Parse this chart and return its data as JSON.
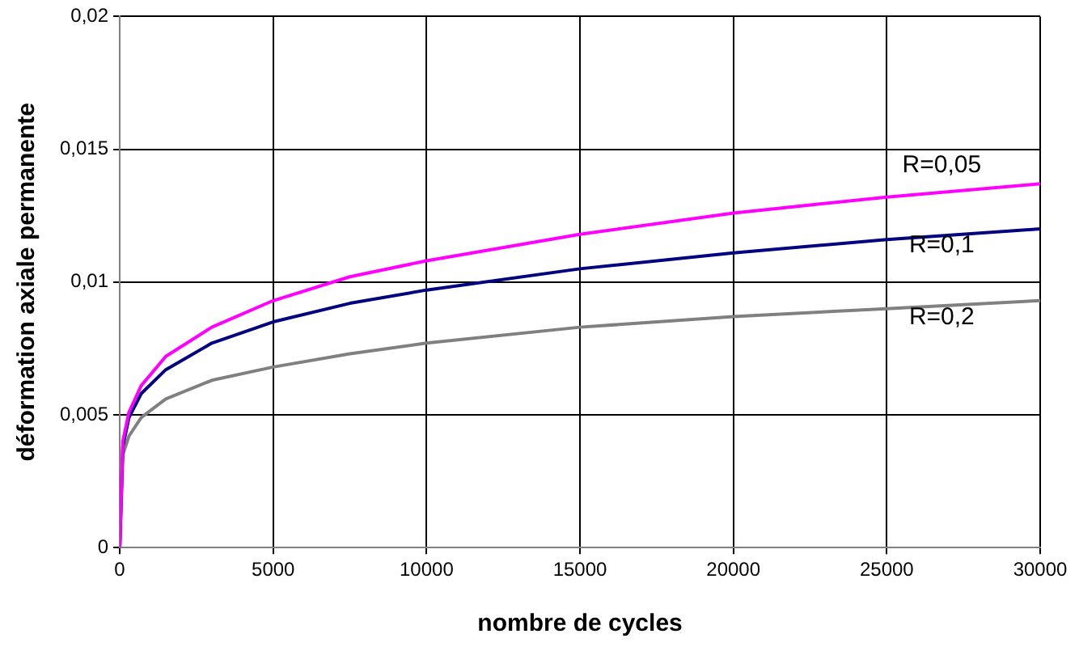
{
  "chart_data": {
    "type": "line",
    "xlabel": "nombre de cycles",
    "ylabel": "déformation axiale permanente",
    "x": [
      0,
      100,
      300,
      700,
      1500,
      3000,
      5000,
      7500,
      10000,
      15000,
      20000,
      25000,
      30000
    ],
    "series": [
      {
        "name": "R=0,05",
        "color": "#ff00ff",
        "values": [
          0,
          0.004,
          0.0051,
          0.0061,
          0.0072,
          0.0083,
          0.0093,
          0.0102,
          0.0108,
          0.0118,
          0.0126,
          0.0132,
          0.0137
        ]
      },
      {
        "name": "R=0,1",
        "color": "#000080",
        "values": [
          0,
          0.0038,
          0.0049,
          0.0058,
          0.0067,
          0.0077,
          0.0085,
          0.0092,
          0.0097,
          0.0105,
          0.0111,
          0.0116,
          0.012
        ]
      },
      {
        "name": "R=0,2",
        "color": "#808080",
        "values": [
          0,
          0.0035,
          0.0042,
          0.0049,
          0.0056,
          0.0063,
          0.0068,
          0.0073,
          0.0077,
          0.0083,
          0.0087,
          0.009,
          0.0093
        ]
      }
    ],
    "xlim": [
      0,
      30000
    ],
    "xticks": [
      0,
      5000,
      10000,
      15000,
      20000,
      25000,
      30000
    ],
    "ylim": [
      0,
      0.02
    ],
    "yticks": [
      0,
      {
        "value": 0.005,
        "label": "0,005"
      },
      {
        "value": 0.01,
        "label": "0,01"
      },
      {
        "value": 0.015,
        "label": "0,015"
      },
      {
        "value": 0.02,
        "label": "0,02"
      }
    ],
    "grid": true,
    "legend": false,
    "marker": "none",
    "line_style": "solid"
  }
}
